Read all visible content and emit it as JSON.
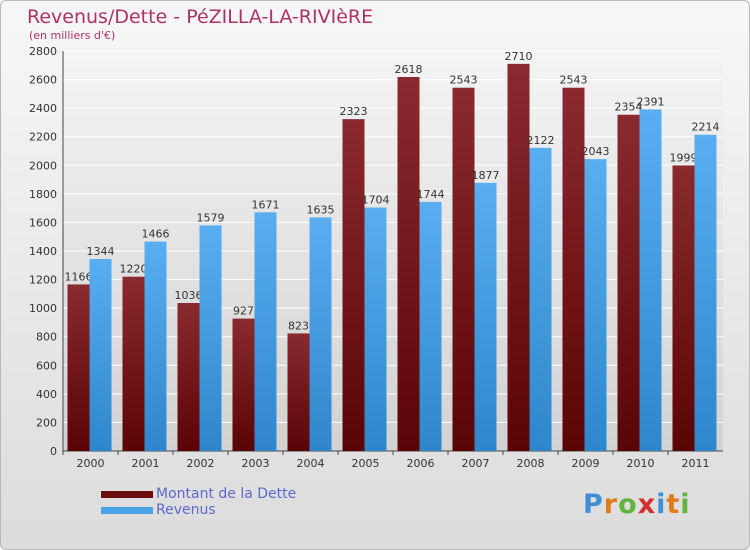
{
  "header": {
    "title": "Revenus/Dette - PéZILLA-LA-RIVIèRE",
    "subtitle": "(en milliers d'€)"
  },
  "colors": {
    "dette": "#7a1518",
    "revenus": "#4aa3e6",
    "title": "#b0306a",
    "legend_text": "#5b6ad0"
  },
  "legend": [
    {
      "label": "Montant de la Dette",
      "color": "#6b0d0f"
    },
    {
      "label": "Revenus",
      "color": "#4aa3e6"
    }
  ],
  "logo": {
    "letters": [
      {
        "ch": "P",
        "color": "#3f8fd6"
      },
      {
        "ch": "r",
        "color": "#e07b1c"
      },
      {
        "ch": "o",
        "color": "#62b43c"
      },
      {
        "ch": "x",
        "color": "#d62d2d"
      },
      {
        "ch": "i",
        "color": "#3f8fd6"
      },
      {
        "ch": "t",
        "color": "#e07b1c"
      },
      {
        "ch": "i",
        "color": "#62b43c"
      }
    ]
  },
  "chart_data": {
    "type": "bar",
    "categories": [
      "2000",
      "2001",
      "2002",
      "2003",
      "2004",
      "2005",
      "2006",
      "2007",
      "2008",
      "2009",
      "2010",
      "2011"
    ],
    "series": [
      {
        "name": "Montant de la Dette",
        "values": [
          1166,
          1220,
          1036,
          927,
          823,
          2323,
          2618,
          2543,
          2710,
          2543,
          2354,
          1999
        ]
      },
      {
        "name": "Revenus",
        "values": [
          1344,
          1466,
          1579,
          1671,
          1635,
          1704,
          1744,
          1877,
          2122,
          2043,
          2391,
          2214
        ]
      }
    ],
    "ylim": [
      0,
      2800
    ],
    "yticks": [
      0,
      200,
      400,
      600,
      800,
      1000,
      1200,
      1400,
      1600,
      1800,
      2000,
      2200,
      2400,
      2600,
      2800
    ],
    "grid": true
  }
}
